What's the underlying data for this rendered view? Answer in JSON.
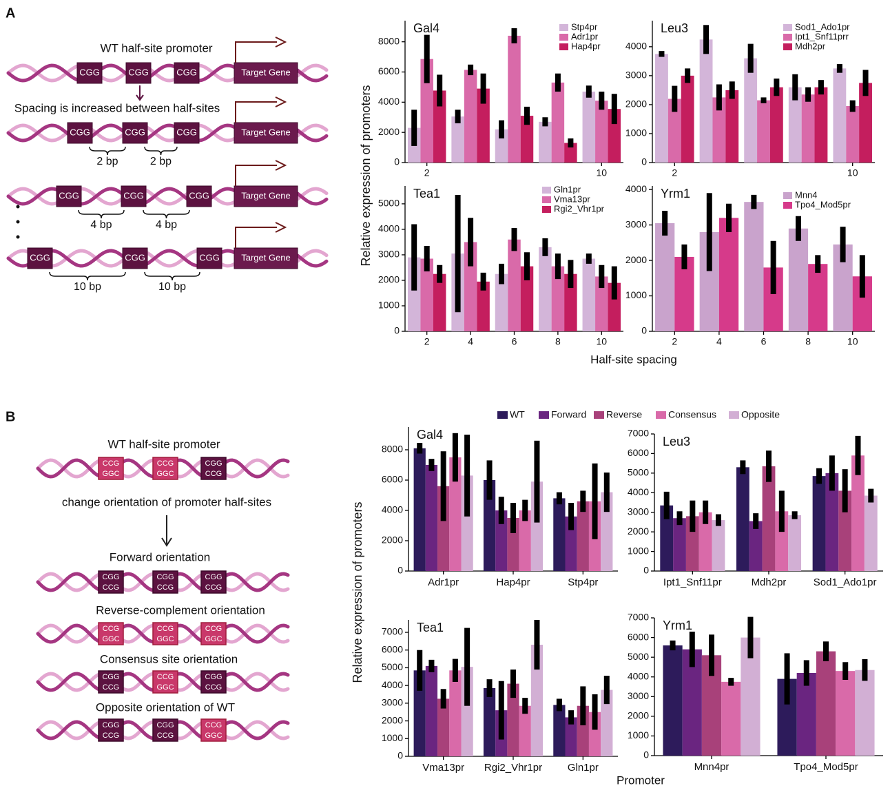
{
  "panels": {
    "a": {
      "letter": "A",
      "ylabel": "Relative expression of promoters",
      "xlabel": "Half-site spacing"
    },
    "b": {
      "letter": "B",
      "ylabel": "Relative expression of promoters",
      "xlabel": "Promoter",
      "legend": [
        {
          "name": "WT",
          "color": "#2d1b5b"
        },
        {
          "name": "Forward",
          "color": "#6a2580"
        },
        {
          "name": "Reverse",
          "color": "#a8417a"
        },
        {
          "name": "Consensus",
          "color": "#d96aa9"
        },
        {
          "name": "Opposite",
          "color": "#d2afd4"
        }
      ]
    }
  },
  "diagram_a": {
    "rows": [
      {
        "label": "WT half-site promoter",
        "boxes": [
          "CGG",
          "CGG",
          "CGG"
        ],
        "gene": "Target Gene"
      },
      {
        "label": "Spacing is increased between half-sites",
        "boxes": [
          "CGG",
          "CGG",
          "CGG"
        ],
        "gene": "Target Gene",
        "spacings": [
          "2 bp",
          "2 bp"
        ]
      },
      {
        "boxes": [
          "CGG",
          "CGG",
          "CGG"
        ],
        "gene": "Target Gene",
        "spacings": [
          "4 bp",
          "4 bp"
        ]
      },
      {
        "boxes": [
          "CGG",
          "CGG",
          "CGG"
        ],
        "gene": "Target Gene",
        "spacings": [
          "10 bp",
          "10 bp"
        ]
      }
    ]
  },
  "diagram_b": {
    "change": "change orientation of promoter half-sites",
    "rows": [
      {
        "label": "WT half-site promoter",
        "boxes": [
          {
            "top": "CCG",
            "bottom": "GGC",
            "kind": "red"
          },
          {
            "top": "CCG",
            "bottom": "GGC",
            "kind": "red"
          },
          {
            "top": "CGG",
            "bottom": "CCG",
            "kind": "dark"
          }
        ]
      },
      {
        "label": "Forward orientation",
        "boxes": [
          {
            "top": "CGG",
            "bottom": "CCG",
            "kind": "dark"
          },
          {
            "top": "CGG",
            "bottom": "CCG",
            "kind": "dark"
          },
          {
            "top": "CGG",
            "bottom": "CCG",
            "kind": "dark"
          }
        ]
      },
      {
        "label": "Reverse-complement orientation",
        "boxes": [
          {
            "top": "CCG",
            "bottom": "GGC",
            "kind": "red"
          },
          {
            "top": "CCG",
            "bottom": "GGC",
            "kind": "red"
          },
          {
            "top": "CCG",
            "bottom": "GGC",
            "kind": "red"
          }
        ]
      },
      {
        "label": "Consensus site orientation",
        "boxes": [
          {
            "top": "CGG",
            "bottom": "CCG",
            "kind": "dark"
          },
          {
            "top": "CCG",
            "bottom": "GGC",
            "kind": "red"
          },
          {
            "top": "CGG",
            "bottom": "CCG",
            "kind": "dark"
          }
        ]
      },
      {
        "label": "Opposite orientation of WT",
        "boxes": [
          {
            "top": "CGG",
            "bottom": "CCG",
            "kind": "dark"
          },
          {
            "top": "CGG",
            "bottom": "CCG",
            "kind": "dark"
          },
          {
            "top": "CCG",
            "bottom": "GGC",
            "kind": "red"
          }
        ]
      }
    ]
  },
  "chart_data": [
    {
      "type": "bar",
      "title": "Gal4",
      "x": [
        2,
        4,
        6,
        8,
        10
      ],
      "xlim": [
        1,
        11
      ],
      "xticks": [
        2,
        10
      ],
      "ylim": [
        0,
        9400
      ],
      "yticks": [
        0,
        2000,
        4000,
        6000,
        8000
      ],
      "series": [
        {
          "name": "Stp4pr",
          "color": "#d3b5d9",
          "values": [
            2300,
            3050,
            2200,
            2700,
            4700
          ],
          "errors": [
            1200,
            450,
            600,
            300,
            400
          ]
        },
        {
          "name": "Adr1pr",
          "color": "#d96aa9",
          "values": [
            6860,
            6140,
            8400,
            5300,
            4100
          ],
          "errors": [
            1600,
            350,
            500,
            600,
            600
          ]
        },
        {
          "name": "Hap4pr",
          "color": "#c41e5e",
          "values": [
            4770,
            4900,
            3100,
            1300,
            3550
          ],
          "errors": [
            1050,
            1000,
            600,
            300,
            1000
          ]
        }
      ]
    },
    {
      "type": "bar",
      "title": "Leu3",
      "x": [
        2,
        4,
        6,
        8,
        10
      ],
      "xlim": [
        1,
        11
      ],
      "xticks": [
        2,
        10
      ],
      "ylim": [
        0,
        4900
      ],
      "yticks": [
        0,
        1000,
        2000,
        3000,
        4000
      ],
      "series": [
        {
          "name": "Sod1_Ado1pr",
          "color": "#d3b5d9",
          "values": [
            3750,
            4250,
            3600,
            2600,
            3250
          ],
          "errors": [
            100,
            500,
            500,
            450,
            150
          ]
        },
        {
          "name": "Ipt1_Snf11prr",
          "color": "#d96aa9",
          "values": [
            2200,
            2250,
            2150,
            2350,
            1950
          ],
          "errors": [
            450,
            450,
            100,
            250,
            200
          ]
        },
        {
          "name": "Mdh2pr",
          "color": "#c41e5e",
          "values": [
            3000,
            2500,
            2600,
            2600,
            2750
          ],
          "errors": [
            250,
            300,
            300,
            250,
            450
          ]
        }
      ]
    },
    {
      "type": "bar",
      "title": "Tea1",
      "x": [
        2,
        4,
        6,
        8,
        10
      ],
      "xlim": [
        1,
        11
      ],
      "xticks": [
        2,
        4,
        6,
        8,
        10
      ],
      "ylim": [
        0,
        5700
      ],
      "yticks": [
        0,
        1000,
        2000,
        3000,
        4000,
        5000
      ],
      "series": [
        {
          "name": "Gln1pr",
          "color": "#d3b5d9",
          "values": [
            2900,
            3050,
            2250,
            3300,
            2850
          ],
          "errors": [
            1300,
            2300,
            400,
            350,
            200
          ]
        },
        {
          "name": "Vma13pr",
          "color": "#d96aa9",
          "values": [
            2850,
            3500,
            3600,
            2550,
            2150
          ],
          "errors": [
            500,
            950,
            450,
            500,
            450
          ]
        },
        {
          "name": "Rgi2_Vhr1pr",
          "color": "#c41e5e",
          "values": [
            2250,
            1950,
            2550,
            2250,
            1900
          ],
          "errors": [
            350,
            350,
            550,
            550,
            650
          ]
        }
      ]
    },
    {
      "type": "bar",
      "title": "Yrm1",
      "x": [
        2,
        4,
        6,
        8,
        10
      ],
      "xlim": [
        1,
        11
      ],
      "xticks": [
        2,
        4,
        6,
        8,
        10
      ],
      "ylim": [
        0,
        4100
      ],
      "yticks": [
        0,
        1000,
        2000,
        3000,
        4000
      ],
      "series": [
        {
          "name": "Mnn4",
          "color": "#c9a3cc",
          "values": [
            3050,
            2800,
            3650,
            2900,
            2450
          ],
          "errors": [
            350,
            1100,
            200,
            350,
            500
          ]
        },
        {
          "name": "Tpo4_Mod5pr",
          "color": "#d63a8a",
          "values": [
            2100,
            3200,
            1800,
            1900,
            1550
          ],
          "errors": [
            350,
            400,
            750,
            250,
            600
          ]
        }
      ]
    },
    {
      "type": "bar",
      "title": "Gal4",
      "categories": [
        "Adr1pr",
        "Hap4pr",
        "Stp4pr"
      ],
      "ylim": [
        0,
        9500
      ],
      "yticks": [
        0,
        2000,
        4000,
        6000,
        8000
      ],
      "series": [
        {
          "color": "#2d1b5b",
          "values": [
            8100,
            6000,
            4800
          ],
          "errors": [
            350,
            1300,
            400
          ]
        },
        {
          "color": "#6a2580",
          "values": [
            7000,
            4000,
            3600
          ],
          "errors": [
            400,
            900,
            900
          ]
        },
        {
          "color": "#a8417a",
          "values": [
            5600,
            3500,
            4600
          ],
          "errors": [
            2300,
            1000,
            700
          ]
        },
        {
          "color": "#d96aa9",
          "values": [
            7500,
            4000,
            4600
          ],
          "errors": [
            1600,
            700,
            2500
          ]
        },
        {
          "color": "#d2afd4",
          "values": [
            6300,
            5900,
            5200
          ],
          "errors": [
            2700,
            2700,
            1300
          ]
        }
      ]
    },
    {
      "type": "bar",
      "title": "Leu3",
      "categories": [
        "Ipt1_Snf11pr",
        "Mdh2pr",
        "Sod1_Ado1pr"
      ],
      "ylim": [
        0,
        7000
      ],
      "yticks": [
        0,
        1000,
        2000,
        3000,
        4000,
        5000,
        6000,
        7000
      ],
      "series": [
        {
          "color": "#2d1b5b",
          "values": [
            3350,
            5300,
            4850
          ],
          "errors": [
            700,
            350,
            400
          ]
        },
        {
          "color": "#6a2580",
          "values": [
            2700,
            2550,
            5000
          ],
          "errors": [
            350,
            400,
            900
          ]
        },
        {
          "color": "#a8417a",
          "values": [
            2800,
            5350,
            4100
          ],
          "errors": [
            800,
            800,
            1100
          ]
        },
        {
          "color": "#d96aa9",
          "values": [
            3000,
            3050,
            5900
          ],
          "errors": [
            600,
            1050,
            1000
          ]
        },
        {
          "color": "#d2afd4",
          "values": [
            2600,
            2850,
            3850
          ],
          "errors": [
            300,
            200,
            350
          ]
        }
      ]
    },
    {
      "type": "bar",
      "title": "Tea1",
      "categories": [
        "Vma13pr",
        "Rgi2_Vhr1pr",
        "Gln1pr"
      ],
      "ylim": [
        0,
        7700
      ],
      "yticks": [
        0,
        1000,
        2000,
        3000,
        4000,
        5000,
        6000,
        7000
      ],
      "series": [
        {
          "color": "#2d1b5b",
          "values": [
            4850,
            3850,
            2900
          ],
          "errors": [
            1150,
            500,
            350
          ]
        },
        {
          "color": "#6a2580",
          "values": [
            5100,
            2600,
            2200
          ],
          "errors": [
            350,
            1650,
            400
          ]
        },
        {
          "color": "#a8417a",
          "values": [
            3250,
            4100,
            2850
          ],
          "errors": [
            550,
            800,
            1100
          ]
        },
        {
          "color": "#d96aa9",
          "values": [
            4850,
            2850,
            2500
          ],
          "errors": [
            650,
            450,
            1000
          ]
        },
        {
          "color": "#d2afd4",
          "values": [
            5050,
            6300,
            3750
          ],
          "errors": [
            2200,
            1400,
            800
          ]
        }
      ]
    },
    {
      "type": "bar",
      "title": "Yrm1",
      "categories": [
        "Mnn4pr",
        "Tpo4_Mod5pr"
      ],
      "ylim": [
        0,
        7000
      ],
      "yticks": [
        0,
        1000,
        2000,
        3000,
        4000,
        5000,
        6000,
        7000
      ],
      "series": [
        {
          "color": "#2d1b5b",
          "values": [
            5600,
            3900
          ],
          "errors": [
            250,
            1300
          ]
        },
        {
          "color": "#6a2580",
          "values": [
            5400,
            4200
          ],
          "errors": [
            900,
            650
          ]
        },
        {
          "color": "#a8417a",
          "values": [
            5100,
            5300
          ],
          "errors": [
            1050,
            500
          ]
        },
        {
          "color": "#d96aa9",
          "values": [
            3750,
            4300
          ],
          "errors": [
            200,
            450
          ]
        },
        {
          "color": "#d2afd4",
          "values": [
            6000,
            4350
          ],
          "errors": [
            1050,
            550
          ]
        }
      ]
    }
  ]
}
